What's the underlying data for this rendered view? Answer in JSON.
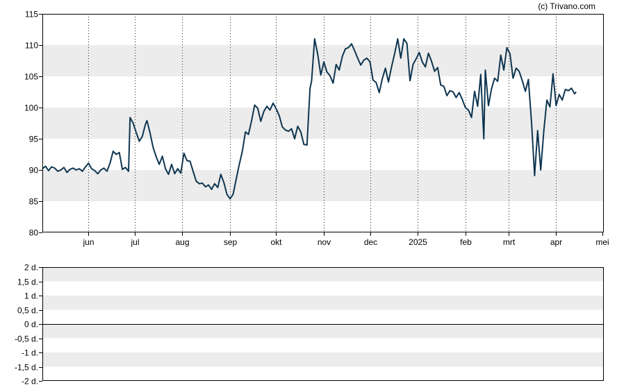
{
  "copyright": "(c) Trivano.com",
  "chart_data": [
    {
      "type": "line",
      "grid": true,
      "ylim": [
        80,
        115
      ],
      "y_ticks": [
        "115",
        "110",
        "105",
        "100",
        "95",
        "90",
        "85",
        "80"
      ],
      "x_tick_labels": [
        "jun",
        "jul",
        "aug",
        "sep",
        "okt",
        "nov",
        "dec",
        "2025",
        "feb",
        "mrt",
        "apr",
        "mei"
      ],
      "x_tick_dates": [
        "2024-06-01",
        "2024-07-01",
        "2024-08-01",
        "2024-09-01",
        "2024-10-01",
        "2024-11-01",
        "2024-12-01",
        "2025-01-01",
        "2025-02-01",
        "2025-03-01",
        "2025-04-01",
        "2025-05-01"
      ],
      "xlim": [
        "2024-05-02",
        "2025-05-02"
      ],
      "line_color": "#0d3550",
      "series": [
        {
          "points": [
            [
              "2024-05-02",
              90.2
            ],
            [
              "2024-05-04",
              90.6
            ],
            [
              "2024-05-06",
              89.9
            ],
            [
              "2024-05-08",
              90.5
            ],
            [
              "2024-05-10",
              90.3
            ],
            [
              "2024-05-12",
              89.8
            ],
            [
              "2024-05-14",
              90.0
            ],
            [
              "2024-05-16",
              90.4
            ],
            [
              "2024-05-18",
              89.6
            ],
            [
              "2024-05-20",
              90.1
            ],
            [
              "2024-05-22",
              90.3
            ],
            [
              "2024-05-24",
              90.0
            ],
            [
              "2024-05-26",
              90.2
            ],
            [
              "2024-05-28",
              89.8
            ],
            [
              "2024-05-30",
              90.5
            ],
            [
              "2024-06-01",
              91.1
            ],
            [
              "2024-06-03",
              90.2
            ],
            [
              "2024-06-05",
              89.9
            ],
            [
              "2024-06-07",
              89.4
            ],
            [
              "2024-06-09",
              90.0
            ],
            [
              "2024-06-11",
              90.3
            ],
            [
              "2024-06-13",
              89.8
            ],
            [
              "2024-06-15",
              91.1
            ],
            [
              "2024-06-17",
              93.0
            ],
            [
              "2024-06-19",
              92.5
            ],
            [
              "2024-06-21",
              92.8
            ],
            [
              "2024-06-23",
              90.1
            ],
            [
              "2024-06-25",
              90.4
            ],
            [
              "2024-06-27",
              89.8
            ],
            [
              "2024-06-28",
              98.4
            ],
            [
              "2024-06-30",
              97.5
            ],
            [
              "2024-07-02",
              96.0
            ],
            [
              "2024-07-04",
              94.6
            ],
            [
              "2024-07-06",
              95.4
            ],
            [
              "2024-07-08",
              97.3
            ],
            [
              "2024-07-09",
              97.9
            ],
            [
              "2024-07-11",
              95.9
            ],
            [
              "2024-07-13",
              93.6
            ],
            [
              "2024-07-15",
              92.1
            ],
            [
              "2024-07-17",
              90.9
            ],
            [
              "2024-07-19",
              92.2
            ],
            [
              "2024-07-21",
              90.2
            ],
            [
              "2024-07-23",
              89.3
            ],
            [
              "2024-07-25",
              90.9
            ],
            [
              "2024-07-27",
              89.4
            ],
            [
              "2024-07-29",
              90.2
            ],
            [
              "2024-07-31",
              89.5
            ],
            [
              "2024-08-02",
              92.7
            ],
            [
              "2024-08-04",
              91.5
            ],
            [
              "2024-08-06",
              91.4
            ],
            [
              "2024-08-08",
              89.8
            ],
            [
              "2024-08-10",
              88.2
            ],
            [
              "2024-08-12",
              87.8
            ],
            [
              "2024-08-14",
              87.9
            ],
            [
              "2024-08-16",
              87.3
            ],
            [
              "2024-08-18",
              87.6
            ],
            [
              "2024-08-20",
              86.9
            ],
            [
              "2024-08-22",
              87.8
            ],
            [
              "2024-08-24",
              87.2
            ],
            [
              "2024-08-26",
              89.3
            ],
            [
              "2024-08-28",
              88.0
            ],
            [
              "2024-08-30",
              86.1
            ],
            [
              "2024-09-01",
              85.4
            ],
            [
              "2024-09-03",
              86.1
            ],
            [
              "2024-09-05",
              88.5
            ],
            [
              "2024-09-07",
              90.9
            ],
            [
              "2024-09-09",
              93.0
            ],
            [
              "2024-09-11",
              96.1
            ],
            [
              "2024-09-13",
              95.7
            ],
            [
              "2024-09-15",
              97.9
            ],
            [
              "2024-09-17",
              100.4
            ],
            [
              "2024-09-19",
              99.9
            ],
            [
              "2024-09-21",
              97.8
            ],
            [
              "2024-09-23",
              99.4
            ],
            [
              "2024-09-25",
              100.2
            ],
            [
              "2024-09-27",
              99.6
            ],
            [
              "2024-09-29",
              100.7
            ],
            [
              "2024-10-01",
              99.8
            ],
            [
              "2024-10-03",
              98.7
            ],
            [
              "2024-10-05",
              96.9
            ],
            [
              "2024-10-07",
              96.4
            ],
            [
              "2024-10-09",
              96.2
            ],
            [
              "2024-10-11",
              96.6
            ],
            [
              "2024-10-13",
              95.0
            ],
            [
              "2024-10-15",
              97.0
            ],
            [
              "2024-10-17",
              96.1
            ],
            [
              "2024-10-19",
              94.1
            ],
            [
              "2024-10-21",
              94.0
            ],
            [
              "2024-10-23",
              103.1
            ],
            [
              "2024-10-24",
              104.2
            ],
            [
              "2024-10-26",
              111.0
            ],
            [
              "2024-10-28",
              108.5
            ],
            [
              "2024-10-30",
              105.2
            ],
            [
              "2024-11-01",
              107.3
            ],
            [
              "2024-11-03",
              105.7
            ],
            [
              "2024-11-05",
              105.1
            ],
            [
              "2024-11-07",
              103.9
            ],
            [
              "2024-11-09",
              106.9
            ],
            [
              "2024-11-11",
              106.0
            ],
            [
              "2024-11-13",
              108.2
            ],
            [
              "2024-11-15",
              109.4
            ],
            [
              "2024-11-17",
              109.6
            ],
            [
              "2024-11-19",
              110.2
            ],
            [
              "2024-11-21",
              109.1
            ],
            [
              "2024-11-23",
              107.9
            ],
            [
              "2024-11-25",
              106.8
            ],
            [
              "2024-11-27",
              107.6
            ],
            [
              "2024-11-29",
              107.9
            ],
            [
              "2024-12-01",
              107.3
            ],
            [
              "2024-12-03",
              104.4
            ],
            [
              "2024-12-05",
              104.0
            ],
            [
              "2024-12-07",
              102.4
            ],
            [
              "2024-12-09",
              104.6
            ],
            [
              "2024-12-11",
              106.3
            ],
            [
              "2024-12-13",
              104.1
            ],
            [
              "2024-12-15",
              106.5
            ],
            [
              "2024-12-17",
              108.6
            ],
            [
              "2024-12-19",
              111.0
            ],
            [
              "2024-12-21",
              107.9
            ],
            [
              "2024-12-23",
              111.0
            ],
            [
              "2024-12-25",
              110.3
            ],
            [
              "2024-12-27",
              104.3
            ],
            [
              "2024-12-29",
              106.9
            ],
            [
              "2024-12-31",
              107.8
            ],
            [
              "2025-01-02",
              108.8
            ],
            [
              "2025-01-04",
              107.3
            ],
            [
              "2025-01-06",
              106.5
            ],
            [
              "2025-01-08",
              108.7
            ],
            [
              "2025-01-10",
              107.4
            ],
            [
              "2025-01-12",
              105.8
            ],
            [
              "2025-01-14",
              106.4
            ],
            [
              "2025-01-16",
              103.6
            ],
            [
              "2025-01-18",
              103.4
            ],
            [
              "2025-01-20",
              101.9
            ],
            [
              "2025-01-22",
              102.7
            ],
            [
              "2025-01-24",
              102.5
            ],
            [
              "2025-01-26",
              101.6
            ],
            [
              "2025-01-28",
              102.4
            ],
            [
              "2025-01-30",
              101.3
            ],
            [
              "2025-02-01",
              100.0
            ],
            [
              "2025-02-03",
              99.6
            ],
            [
              "2025-02-05",
              98.4
            ],
            [
              "2025-02-07",
              102.6
            ],
            [
              "2025-02-09",
              100.2
            ],
            [
              "2025-02-11",
              105.3
            ],
            [
              "2025-02-13",
              95.0
            ],
            [
              "2025-02-14",
              106.0
            ],
            [
              "2025-02-16",
              100.3
            ],
            [
              "2025-02-18",
              103.0
            ],
            [
              "2025-02-20",
              104.7
            ],
            [
              "2025-02-22",
              104.2
            ],
            [
              "2025-02-24",
              108.4
            ],
            [
              "2025-02-26",
              106.0
            ],
            [
              "2025-02-28",
              109.6
            ],
            [
              "2025-03-02",
              108.6
            ],
            [
              "2025-03-04",
              104.7
            ],
            [
              "2025-03-06",
              106.3
            ],
            [
              "2025-03-08",
              105.8
            ],
            [
              "2025-03-10",
              104.3
            ],
            [
              "2025-03-12",
              102.6
            ],
            [
              "2025-03-14",
              104.5
            ],
            [
              "2025-03-16",
              97.6
            ],
            [
              "2025-03-18",
              89.1
            ],
            [
              "2025-03-20",
              96.3
            ],
            [
              "2025-03-22",
              90.0
            ],
            [
              "2025-03-24",
              96.3
            ],
            [
              "2025-03-26",
              101.2
            ],
            [
              "2025-03-28",
              100.1
            ],
            [
              "2025-03-30",
              105.4
            ],
            [
              "2025-04-01",
              100.3
            ],
            [
              "2025-04-03",
              102.1
            ],
            [
              "2025-04-05",
              101.2
            ],
            [
              "2025-04-07",
              102.9
            ],
            [
              "2025-04-09",
              102.7
            ],
            [
              "2025-04-11",
              103.1
            ],
            [
              "2025-04-13",
              102.2
            ],
            [
              "2025-04-14",
              102.5
            ]
          ]
        }
      ]
    },
    {
      "type": "line",
      "grid": true,
      "ylim": [
        -2,
        2
      ],
      "y_ticks": [
        "2 d.",
        "1,5 d.",
        "1 d.",
        "0,5 d.",
        "0 d.",
        "-0,5 d.",
        "-1 d.",
        "-1,5 d.",
        "-2 d."
      ],
      "zero_line": true,
      "series": []
    }
  ]
}
